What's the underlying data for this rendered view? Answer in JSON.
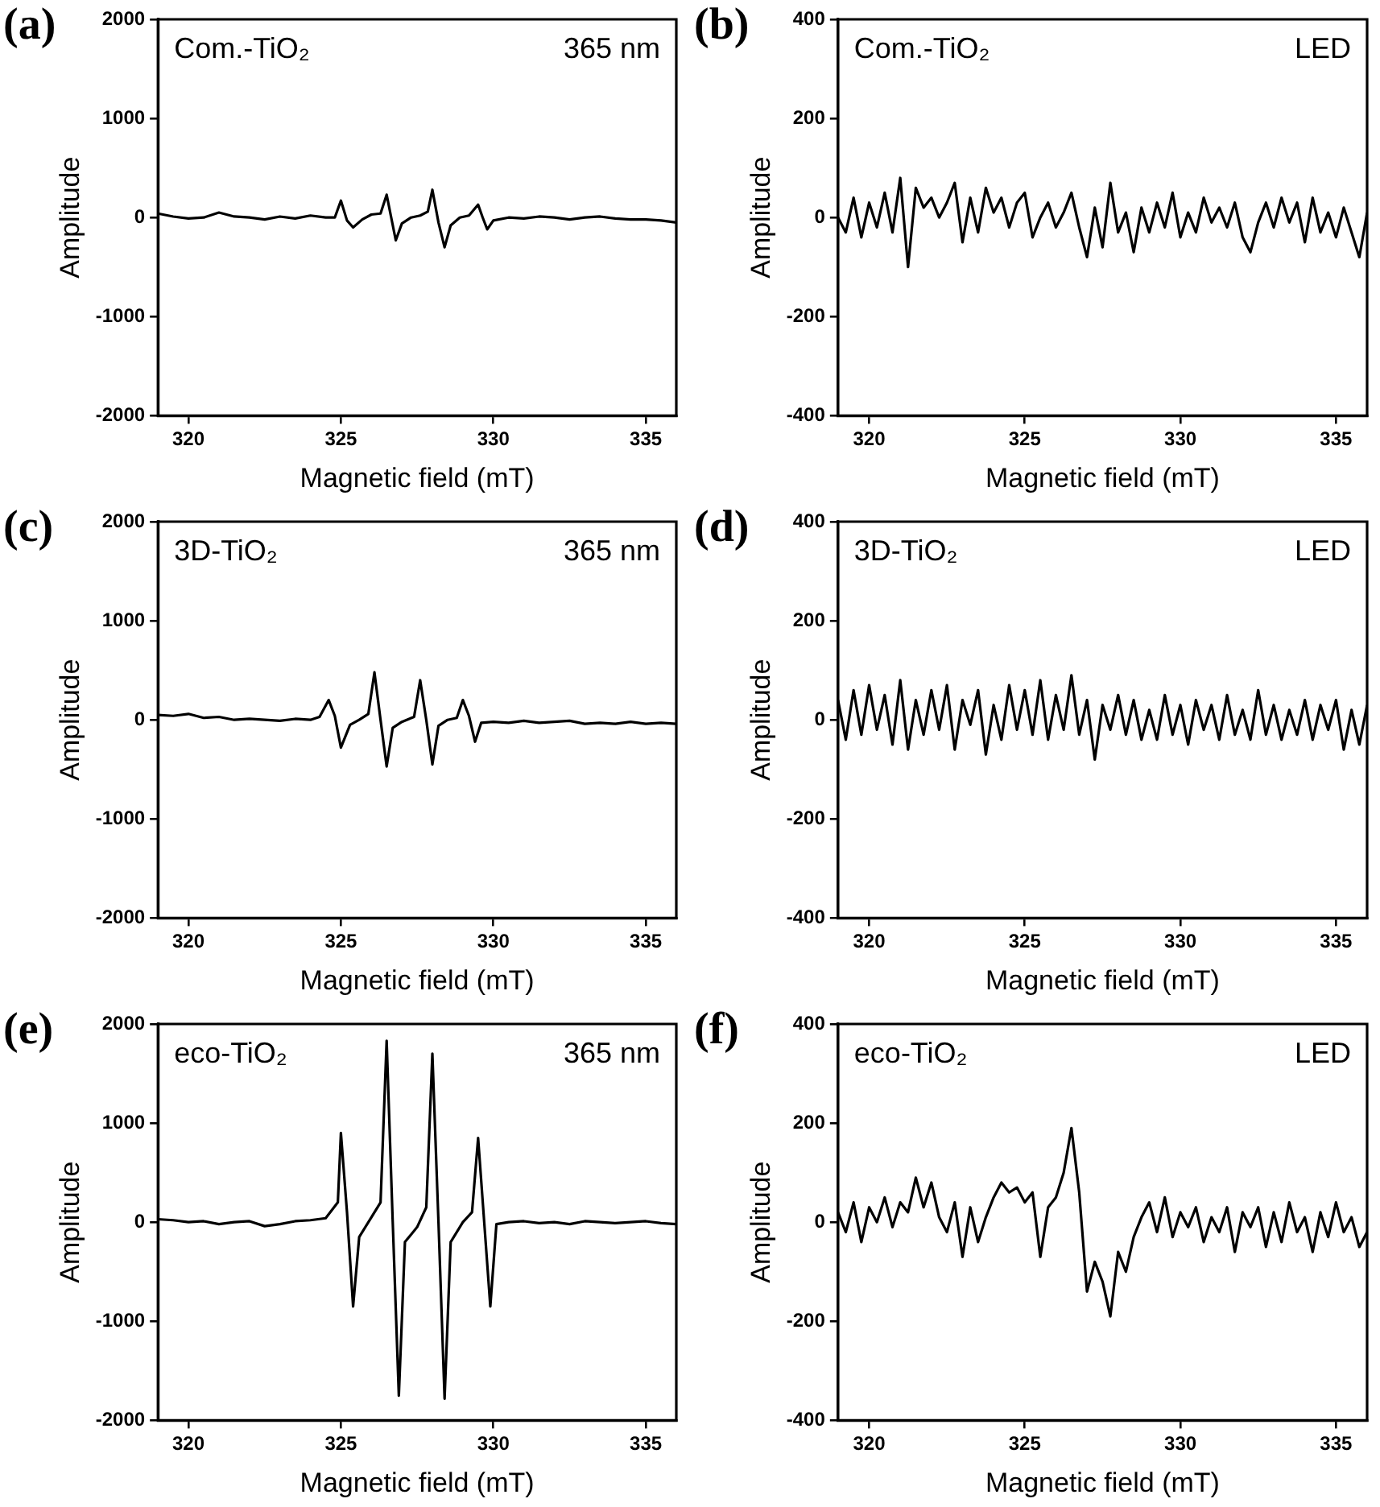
{
  "chart_data": [
    {
      "type": "line",
      "xlabel": "Magnetic field (mT)",
      "ylabel": "Amplitude",
      "annotations": [
        "(a)",
        "Com.-TiO₂",
        "365 nm"
      ],
      "xlim": [
        319,
        336
      ],
      "xticks": [
        320,
        325,
        330,
        335
      ],
      "ylim": [
        -2000,
        2000
      ],
      "yticks": [
        -2000,
        -1000,
        0,
        1000,
        2000
      ],
      "x": [
        319,
        319.5,
        320,
        320.5,
        321,
        321.5,
        322,
        322.5,
        323,
        323.5,
        324,
        324.5,
        324.8,
        325.0,
        325.2,
        325.4,
        325.7,
        326.0,
        326.3,
        326.5,
        326.65,
        326.8,
        327.0,
        327.3,
        327.6,
        327.85,
        328.0,
        328.2,
        328.4,
        328.6,
        328.9,
        329.2,
        329.5,
        329.65,
        329.8,
        330.0,
        330.5,
        331,
        331.5,
        332,
        332.5,
        333,
        333.5,
        334,
        334.5,
        335,
        335.5,
        336
      ],
      "series": [
        {
          "color": "#000000",
          "values": [
            40,
            10,
            -10,
            0,
            50,
            10,
            0,
            -20,
            10,
            -10,
            20,
            0,
            0,
            170,
            -30,
            -100,
            -20,
            30,
            40,
            230,
            0,
            -230,
            -60,
            0,
            20,
            60,
            280,
            -50,
            -300,
            -80,
            0,
            20,
            130,
            0,
            -120,
            -30,
            0,
            -10,
            10,
            0,
            -20,
            0,
            10,
            -10,
            -20,
            -20,
            -30,
            -50
          ]
        }
      ]
    },
    {
      "type": "line",
      "xlabel": "Magnetic field (mT)",
      "ylabel": "Amplitude",
      "annotations": [
        "(b)",
        "Com.-TiO₂",
        "LED"
      ],
      "xlim": [
        319,
        336
      ],
      "xticks": [
        320,
        325,
        330,
        335
      ],
      "ylim": [
        -400,
        400
      ],
      "yticks": [
        -400,
        -200,
        0,
        200,
        400
      ],
      "x": [
        319,
        319.25,
        319.5,
        319.75,
        320,
        320.25,
        320.5,
        320.75,
        321,
        321.25,
        321.5,
        321.75,
        322,
        322.25,
        322.5,
        322.75,
        323,
        323.25,
        323.5,
        323.75,
        324,
        324.25,
        324.5,
        324.75,
        325,
        325.25,
        325.5,
        325.75,
        326,
        326.25,
        326.5,
        326.75,
        327,
        327.25,
        327.5,
        327.75,
        328,
        328.25,
        328.5,
        328.75,
        329,
        329.25,
        329.5,
        329.75,
        330,
        330.25,
        330.5,
        330.75,
        331,
        331.25,
        331.5,
        331.75,
        332,
        332.25,
        332.5,
        332.75,
        333,
        333.25,
        333.5,
        333.75,
        334,
        334.25,
        334.5,
        334.75,
        335,
        335.25,
        335.5,
        335.75,
        336
      ],
      "series": [
        {
          "color": "#000000",
          "values": [
            0,
            -30,
            40,
            -40,
            30,
            -20,
            50,
            -30,
            80,
            -100,
            60,
            20,
            40,
            0,
            30,
            70,
            -50,
            40,
            -30,
            60,
            10,
            40,
            -20,
            30,
            50,
            -40,
            0,
            30,
            -20,
            10,
            50,
            -20,
            -80,
            20,
            -60,
            70,
            -30,
            10,
            -70,
            20,
            -30,
            30,
            -20,
            50,
            -40,
            10,
            -30,
            40,
            -10,
            20,
            -20,
            30,
            -40,
            -70,
            -10,
            30,
            -20,
            40,
            -10,
            30,
            -50,
            40,
            -30,
            10,
            -40,
            20,
            -30,
            -80,
            10
          ]
        }
      ]
    },
    {
      "type": "line",
      "xlabel": "Magnetic field (mT)",
      "ylabel": "Amplitude",
      "annotations": [
        "(c)",
        "3D-TiO₂",
        "365 nm"
      ],
      "xlim": [
        319,
        336
      ],
      "xticks": [
        320,
        325,
        330,
        335
      ],
      "ylim": [
        -2000,
        2000
      ],
      "yticks": [
        -2000,
        -1000,
        0,
        1000,
        2000
      ],
      "x": [
        319,
        319.5,
        320,
        320.5,
        321,
        321.5,
        322,
        322.5,
        323,
        323.5,
        324,
        324.3,
        324.6,
        324.8,
        325.0,
        325.3,
        325.6,
        325.9,
        326.1,
        326.3,
        326.5,
        326.7,
        327.0,
        327.4,
        327.6,
        327.8,
        328.0,
        328.2,
        328.5,
        328.8,
        329.0,
        329.2,
        329.4,
        329.6,
        330,
        330.5,
        331,
        331.5,
        332,
        332.5,
        333,
        333.5,
        334,
        334.5,
        335,
        335.5,
        336
      ],
      "series": [
        {
          "color": "#000000",
          "values": [
            50,
            40,
            60,
            20,
            30,
            0,
            10,
            0,
            -10,
            10,
            0,
            30,
            200,
            40,
            -280,
            -50,
            0,
            60,
            480,
            0,
            -470,
            -80,
            -20,
            30,
            400,
            0,
            -450,
            -60,
            0,
            20,
            200,
            40,
            -220,
            -30,
            -20,
            -30,
            -10,
            -30,
            -20,
            -10,
            -40,
            -30,
            -40,
            -20,
            -40,
            -30,
            -40
          ]
        }
      ]
    },
    {
      "type": "line",
      "xlabel": "Magnetic field (mT)",
      "ylabel": "Amplitude",
      "annotations": [
        "(d)",
        "3D-TiO₂",
        "LED"
      ],
      "xlim": [
        319,
        336
      ],
      "xticks": [
        320,
        325,
        330,
        335
      ],
      "ylim": [
        -400,
        400
      ],
      "yticks": [
        -400,
        -200,
        0,
        200,
        400
      ],
      "x": [
        319,
        319.25,
        319.5,
        319.75,
        320,
        320.25,
        320.5,
        320.75,
        321,
        321.25,
        321.5,
        321.75,
        322,
        322.25,
        322.5,
        322.75,
        323,
        323.25,
        323.5,
        323.75,
        324,
        324.25,
        324.5,
        324.75,
        325,
        325.25,
        325.5,
        325.75,
        326,
        326.25,
        326.5,
        326.75,
        327,
        327.25,
        327.5,
        327.75,
        328,
        328.25,
        328.5,
        328.75,
        329,
        329.25,
        329.5,
        329.75,
        330,
        330.25,
        330.5,
        330.75,
        331,
        331.25,
        331.5,
        331.75,
        332,
        332.25,
        332.5,
        332.75,
        333,
        333.25,
        333.5,
        333.75,
        334,
        334.25,
        334.5,
        334.75,
        335,
        335.25,
        335.5,
        335.75,
        336
      ],
      "series": [
        {
          "color": "#000000",
          "values": [
            40,
            -40,
            60,
            -30,
            70,
            -20,
            50,
            -50,
            80,
            -60,
            40,
            -30,
            60,
            -20,
            70,
            -60,
            40,
            -10,
            60,
            -70,
            30,
            -40,
            70,
            -20,
            60,
            -30,
            80,
            -40,
            50,
            -20,
            90,
            -30,
            40,
            -80,
            30,
            -20,
            50,
            -30,
            40,
            -40,
            20,
            -40,
            50,
            -30,
            30,
            -50,
            40,
            -20,
            30,
            -40,
            50,
            -30,
            20,
            -40,
            60,
            -30,
            30,
            -40,
            20,
            -30,
            40,
            -40,
            30,
            -20,
            40,
            -60,
            20,
            -50,
            30
          ]
        }
      ]
    },
    {
      "type": "line",
      "xlabel": "Magnetic field (mT)",
      "ylabel": "Amplitude",
      "annotations": [
        "(e)",
        "eco-TiO₂",
        "365 nm"
      ],
      "xlim": [
        319,
        336
      ],
      "xticks": [
        320,
        325,
        330,
        335
      ],
      "ylim": [
        -2000,
        2000
      ],
      "yticks": [
        -2000,
        -1000,
        0,
        1000,
        2000
      ],
      "x": [
        319,
        319.5,
        320,
        320.5,
        321,
        321.5,
        322,
        322.5,
        323,
        323.5,
        324,
        324.5,
        324.9,
        325.0,
        325.2,
        325.4,
        325.6,
        326.0,
        326.3,
        326.5,
        326.7,
        326.9,
        327.1,
        327.5,
        327.8,
        328.0,
        328.2,
        328.4,
        328.6,
        329.0,
        329.3,
        329.5,
        329.7,
        329.9,
        330.1,
        330.5,
        331,
        331.5,
        332,
        332.5,
        333,
        333.5,
        334,
        334.5,
        335,
        335.5,
        336
      ],
      "series": [
        {
          "color": "#000000",
          "values": [
            30,
            20,
            0,
            10,
            -20,
            0,
            10,
            -40,
            -20,
            10,
            20,
            40,
            200,
            900,
            100,
            -850,
            -150,
            50,
            200,
            1830,
            0,
            -1750,
            -200,
            -50,
            150,
            1700,
            0,
            -1780,
            -200,
            0,
            100,
            850,
            0,
            -850,
            -20,
            0,
            10,
            -10,
            0,
            -20,
            10,
            0,
            -10,
            0,
            10,
            -10,
            -20
          ]
        }
      ]
    },
    {
      "type": "line",
      "xlabel": "Magnetic field (mT)",
      "ylabel": "Amplitude",
      "annotations": [
        "(f)",
        "eco-TiO₂",
        "LED"
      ],
      "xlim": [
        319,
        336
      ],
      "xticks": [
        320,
        325,
        330,
        335
      ],
      "ylim": [
        -400,
        400
      ],
      "yticks": [
        -400,
        -200,
        0,
        200,
        400
      ],
      "x": [
        319,
        319.25,
        319.5,
        319.75,
        320,
        320.25,
        320.5,
        320.75,
        321,
        321.25,
        321.5,
        321.75,
        322,
        322.25,
        322.5,
        322.75,
        323,
        323.25,
        323.5,
        323.75,
        324,
        324.25,
        324.5,
        324.75,
        325,
        325.25,
        325.5,
        325.75,
        326,
        326.25,
        326.5,
        326.75,
        327,
        327.25,
        327.5,
        327.75,
        328,
        328.25,
        328.5,
        328.75,
        329,
        329.25,
        329.5,
        329.75,
        330,
        330.25,
        330.5,
        330.75,
        331,
        331.25,
        331.5,
        331.75,
        332,
        332.25,
        332.5,
        332.75,
        333,
        333.25,
        333.5,
        333.75,
        334,
        334.25,
        334.5,
        334.75,
        335,
        335.25,
        335.5,
        335.75,
        336
      ],
      "series": [
        {
          "color": "#000000",
          "values": [
            20,
            -20,
            40,
            -40,
            30,
            0,
            50,
            -10,
            40,
            20,
            90,
            30,
            80,
            10,
            -20,
            40,
            -70,
            30,
            -40,
            10,
            50,
            80,
            60,
            70,
            40,
            60,
            -70,
            30,
            50,
            100,
            190,
            60,
            -140,
            -80,
            -120,
            -190,
            -60,
            -100,
            -30,
            10,
            40,
            -20,
            50,
            -30,
            20,
            -10,
            30,
            -40,
            10,
            -20,
            30,
            -60,
            20,
            -10,
            30,
            -50,
            20,
            -40,
            40,
            -20,
            10,
            -60,
            20,
            -30,
            40,
            -20,
            10,
            -50,
            -20
          ]
        }
      ]
    }
  ]
}
